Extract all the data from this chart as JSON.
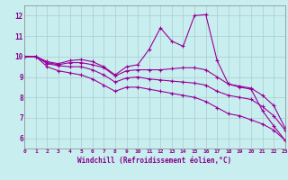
{
  "xlabel": "Windchill (Refroidissement éolien,°C)",
  "xlim": [
    0,
    23
  ],
  "ylim": [
    5.5,
    12.5
  ],
  "yticks": [
    6,
    7,
    8,
    9,
    10,
    11,
    12
  ],
  "xticks": [
    0,
    1,
    2,
    3,
    4,
    5,
    6,
    7,
    8,
    9,
    10,
    11,
    12,
    13,
    14,
    15,
    16,
    17,
    18,
    19,
    20,
    21,
    22,
    23
  ],
  "bg_color": "#c8eef0",
  "line_color": "#990099",
  "grid_color": "#aacccc",
  "series1_y": [
    10.0,
    10.0,
    9.75,
    9.65,
    9.8,
    9.85,
    9.75,
    9.5,
    9.1,
    9.5,
    9.6,
    10.35,
    11.4,
    10.75,
    10.5,
    12.0,
    12.05,
    9.8,
    8.65,
    8.5,
    8.4,
    7.35,
    6.6,
    5.9
  ],
  "series2_y": [
    10.0,
    10.0,
    9.7,
    9.6,
    9.7,
    9.7,
    9.6,
    9.45,
    9.05,
    9.3,
    9.35,
    9.35,
    9.35,
    9.4,
    9.45,
    9.45,
    9.35,
    9.0,
    8.65,
    8.55,
    8.45,
    8.1,
    7.6,
    6.5
  ],
  "series3_y": [
    10.0,
    10.0,
    9.65,
    9.55,
    9.5,
    9.5,
    9.35,
    9.1,
    8.75,
    8.95,
    9.0,
    8.9,
    8.85,
    8.8,
    8.75,
    8.7,
    8.6,
    8.3,
    8.1,
    8.0,
    7.9,
    7.55,
    7.1,
    6.4
  ],
  "series4_y": [
    10.0,
    10.0,
    9.5,
    9.3,
    9.2,
    9.1,
    8.9,
    8.6,
    8.3,
    8.5,
    8.5,
    8.4,
    8.3,
    8.2,
    8.1,
    8.0,
    7.8,
    7.5,
    7.2,
    7.1,
    6.9,
    6.7,
    6.4,
    5.9
  ]
}
